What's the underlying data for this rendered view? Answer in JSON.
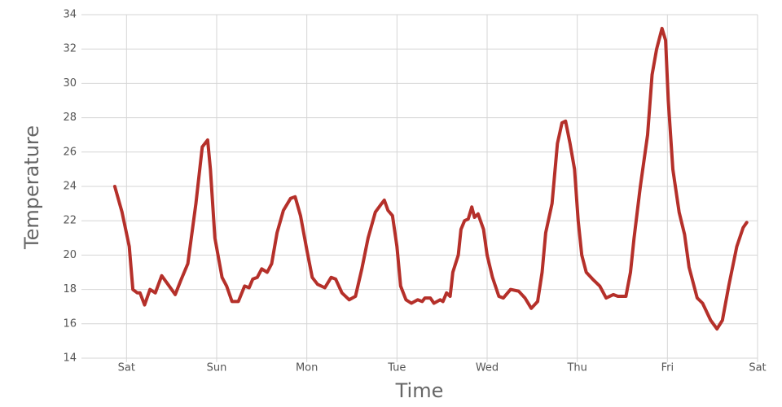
{
  "chart_data": {
    "type": "line",
    "x_label": "Time",
    "y_label": "Temperature",
    "color": "#b5302a",
    "grid": true,
    "xlim": [
      -0.5,
      7
    ],
    "ylim": [
      14,
      34
    ],
    "xticks": [
      {
        "value": 0,
        "label": "Sat"
      },
      {
        "value": 1,
        "label": "Sun"
      },
      {
        "value": 2,
        "label": "Mon"
      },
      {
        "value": 3,
        "label": "Tue"
      },
      {
        "value": 4,
        "label": "Wed"
      },
      {
        "value": 5,
        "label": "Thu"
      },
      {
        "value": 6,
        "label": "Fri"
      },
      {
        "value": 7,
        "label": "Sat"
      }
    ],
    "yticks": [
      14,
      16,
      18,
      20,
      22,
      24,
      26,
      28,
      30,
      32,
      34
    ],
    "x": [
      -0.13,
      -0.05,
      0.03,
      0.07,
      0.12,
      0.15,
      0.2,
      0.26,
      0.32,
      0.39,
      0.46,
      0.54,
      0.6,
      0.68,
      0.77,
      0.84,
      0.9,
      0.93,
      0.98,
      1.06,
      1.11,
      1.17,
      1.24,
      1.31,
      1.36,
      1.4,
      1.45,
      1.5,
      1.56,
      1.61,
      1.67,
      1.74,
      1.82,
      1.87,
      1.93,
      2.0,
      2.06,
      2.12,
      2.2,
      2.27,
      2.32,
      2.39,
      2.47,
      2.54,
      2.61,
      2.68,
      2.76,
      2.83,
      2.86,
      2.9,
      2.95,
      3.0,
      3.04,
      3.1,
      3.16,
      3.23,
      3.28,
      3.31,
      3.37,
      3.41,
      3.48,
      3.51,
      3.55,
      3.59,
      3.62,
      3.68,
      3.71,
      3.75,
      3.79,
      3.83,
      3.86,
      3.9,
      3.96,
      4.0,
      4.06,
      4.13,
      4.18,
      4.26,
      4.35,
      4.42,
      4.49,
      4.56,
      4.61,
      4.65,
      4.72,
      4.78,
      4.83,
      4.87,
      4.92,
      4.97,
      5.01,
      5.05,
      5.1,
      5.17,
      5.25,
      5.32,
      5.4,
      5.45,
      5.54,
      5.59,
      5.63,
      5.7,
      5.78,
      5.83,
      5.88,
      5.94,
      5.98,
      6.01,
      6.06,
      6.13,
      6.19,
      6.24,
      6.33,
      6.39,
      6.48,
      6.55,
      6.61,
      6.68,
      6.77,
      6.84,
      6.88
    ],
    "values": [
      24,
      22.5,
      20.5,
      18,
      17.8,
      17.8,
      17.1,
      18,
      17.8,
      18.8,
      18.3,
      17.7,
      18.5,
      19.5,
      23,
      26.3,
      26.7,
      25,
      21,
      18.7,
      18.2,
      17.3,
      17.3,
      18.2,
      18.1,
      18.6,
      18.7,
      19.2,
      19,
      19.5,
      21.3,
      22.6,
      23.3,
      23.4,
      22.3,
      20.3,
      18.7,
      18.3,
      18.1,
      18.7,
      18.6,
      17.8,
      17.4,
      17.6,
      19.2,
      21,
      22.5,
      23,
      23.2,
      22.6,
      22.3,
      20.5,
      18.2,
      17.4,
      17.2,
      17.4,
      17.3,
      17.5,
      17.5,
      17.2,
      17.4,
      17.3,
      17.8,
      17.6,
      19,
      20,
      21.5,
      22,
      22.1,
      22.8,
      22.2,
      22.4,
      21.5,
      20,
      18.7,
      17.6,
      17.5,
      18,
      17.9,
      17.5,
      16.9,
      17.3,
      19,
      21.3,
      23,
      26.5,
      27.7,
      27.8,
      26.5,
      25,
      22,
      20,
      19,
      18.6,
      18.2,
      17.5,
      17.7,
      17.6,
      17.6,
      19,
      21,
      24,
      27,
      30.5,
      32,
      33.2,
      32.5,
      29,
      25,
      22.5,
      21.2,
      19.3,
      17.5,
      17.2,
      16.2,
      15.7,
      16.2,
      18.2,
      20.5,
      21.6,
      21.9
    ]
  }
}
